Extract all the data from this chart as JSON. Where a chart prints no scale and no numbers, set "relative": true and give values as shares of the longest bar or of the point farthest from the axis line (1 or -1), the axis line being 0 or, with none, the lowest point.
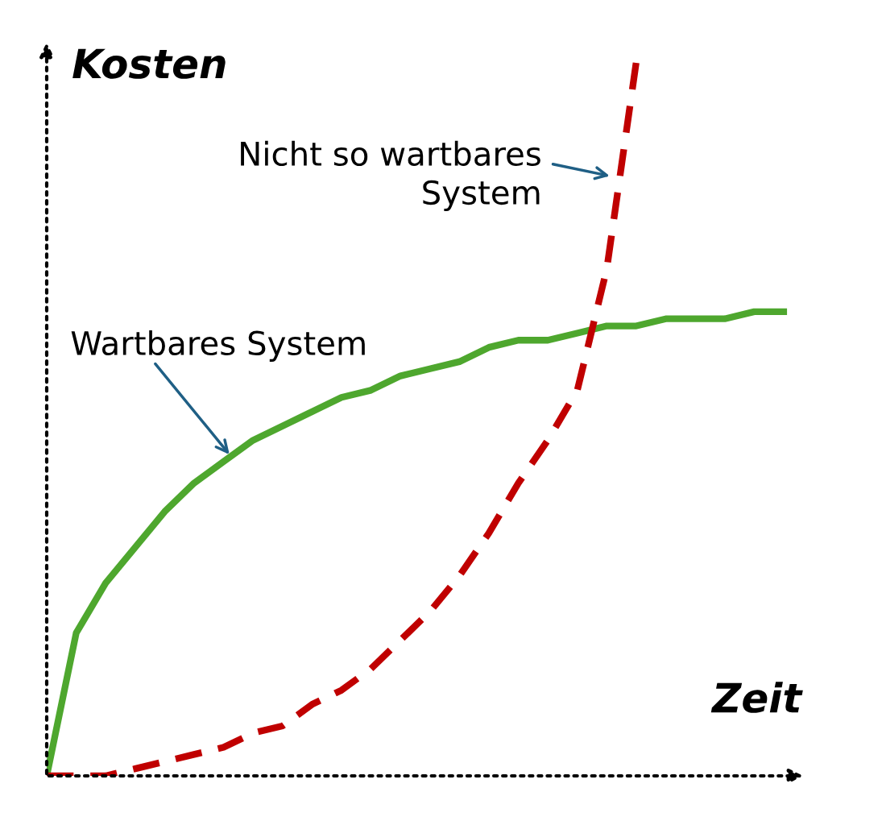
{
  "chart_data": {
    "type": "line",
    "relative": true,
    "xlabel": "Zeit",
    "ylabel": "Kosten",
    "categories": [
      null,
      null,
      null,
      null,
      null,
      null,
      null,
      null,
      null,
      null,
      null,
      null,
      null,
      null,
      null,
      null,
      null,
      null,
      null,
      null,
      null,
      null,
      null,
      null,
      null,
      null
    ],
    "series": [
      {
        "name": "Wartbares System",
        "color": "#4ea72e",
        "line_style": "solid",
        "values": [
          0,
          0.2,
          0.27,
          0.32,
          0.37,
          0.41,
          0.44,
          0.47,
          0.49,
          0.51,
          0.53,
          0.54,
          0.56,
          0.57,
          0.58,
          0.6,
          0.61,
          0.61,
          0.62,
          0.63,
          0.63,
          0.64,
          0.64,
          0.64,
          0.65,
          0.65
        ]
      },
      {
        "name": "Nicht so wartbares System",
        "color": "#c00000",
        "line_style": "dashed",
        "values": [
          0,
          0,
          0.0,
          0.01,
          0.02,
          0.03,
          0.04,
          0.06,
          0.07,
          0.1,
          0.12,
          0.15,
          0.19,
          0.23,
          0.28,
          0.34,
          0.41,
          0.47,
          0.54,
          0.71,
          1.0,
          null,
          null,
          null,
          null,
          null
        ]
      }
    ],
    "grid": false,
    "legend": false,
    "marker": "none"
  }
}
